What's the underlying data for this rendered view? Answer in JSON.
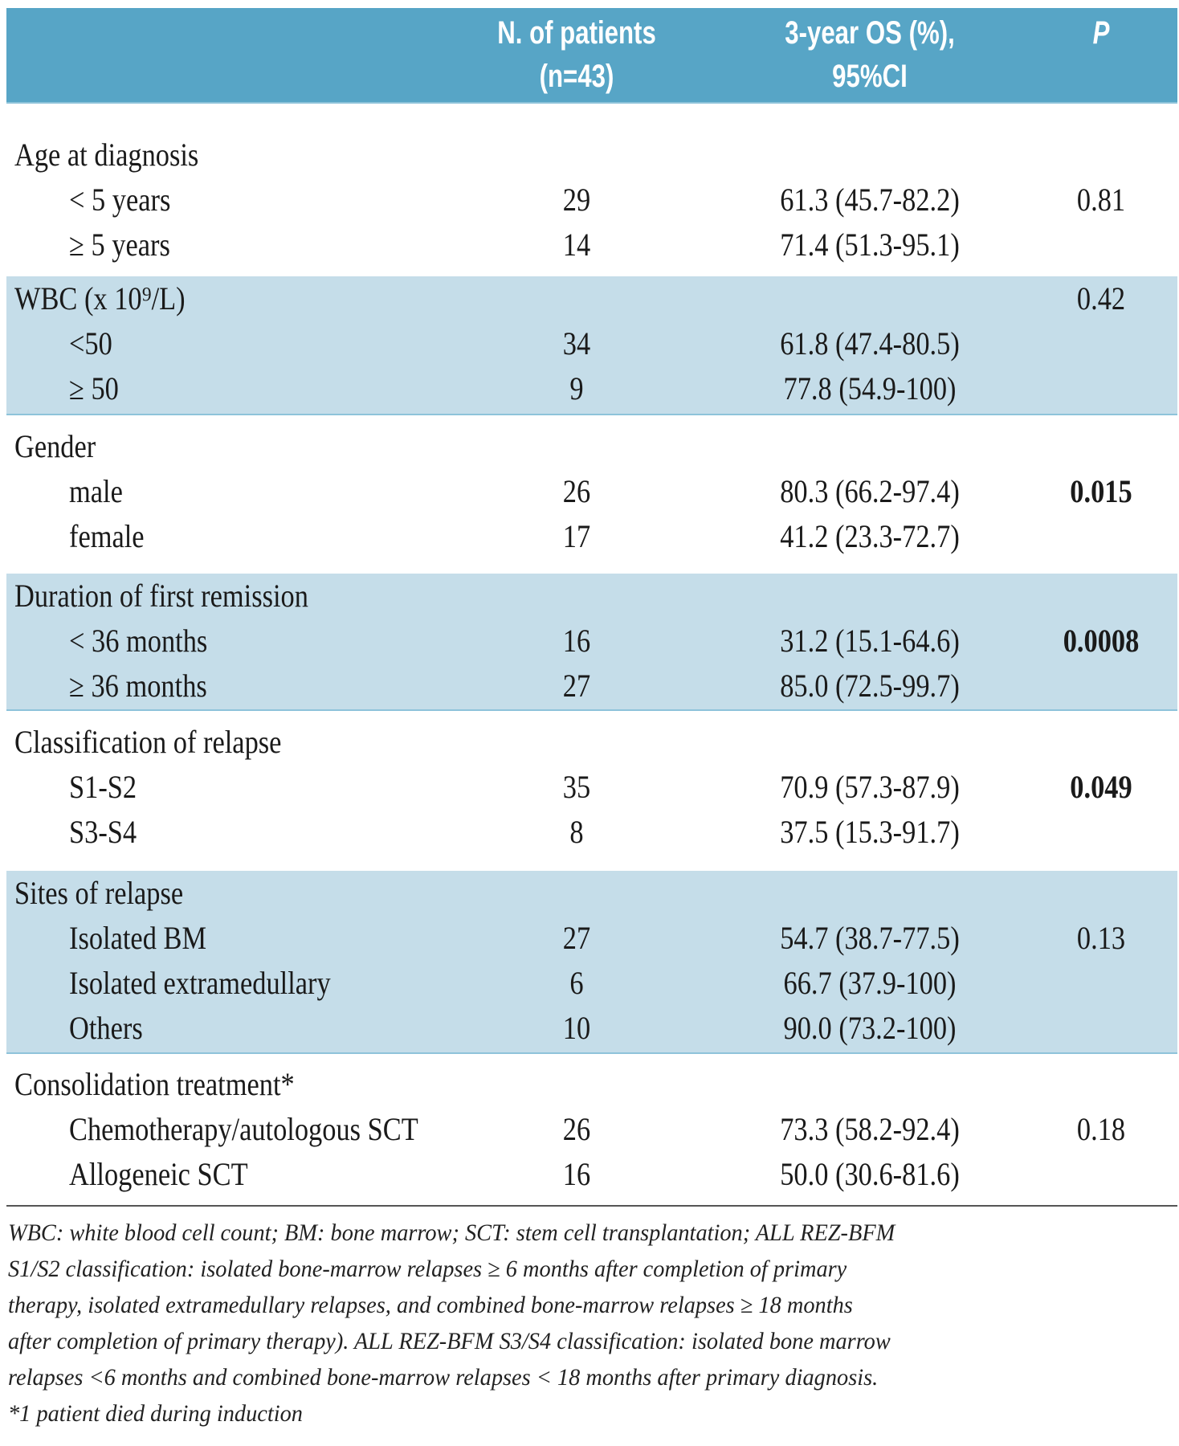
{
  "header": {
    "col_n_line1": "N. of patients",
    "col_n_line2": "(n=43)",
    "col_os_line1": "3-year OS (%),",
    "col_os_line2": "95%CI",
    "col_p": "P"
  },
  "groups": [
    {
      "label": "Age at diagnosis",
      "p": "",
      "rows": [
        {
          "label": "< 5 years",
          "n": "29",
          "os": "61.3 (45.7-82.2)",
          "p": "0.81"
        },
        {
          "label": "≥ 5 years",
          "n": "14",
          "os": "71.4 (51.3-95.1)",
          "p": ""
        }
      ]
    },
    {
      "label": "WBC (x 10⁹/L)",
      "p": "0.42",
      "rows": [
        {
          "label": "<50",
          "n": "34",
          "os": "61.8 (47.4-80.5)",
          "p": ""
        },
        {
          "label": "≥ 50",
          "n": "9",
          "os": "77.8 (54.9-100)",
          "p": ""
        }
      ]
    },
    {
      "label": "Gender",
      "p": "",
      "rows": [
        {
          "label": "male",
          "n": "26",
          "os": "80.3 (66.2-97.4)",
          "p": "0.015"
        },
        {
          "label": "female",
          "n": "17",
          "os": "41.2 (23.3-72.7)",
          "p": ""
        }
      ]
    },
    {
      "label": "Duration of first remission",
      "p": "",
      "rows": [
        {
          "label": "< 36 months",
          "n": "16",
          "os": "31.2 (15.1-64.6)",
          "p": "0.0008"
        },
        {
          "label": "≥ 36 months",
          "n": "27",
          "os": "85.0 (72.5-99.7)",
          "p": ""
        }
      ]
    },
    {
      "label": "Classification of relapse",
      "p": "",
      "rows": [
        {
          "label": "S1-S2",
          "n": "35",
          "os": "70.9 (57.3-87.9)",
          "p": "0.049"
        },
        {
          "label": "S3-S4",
          "n": "8",
          "os": "37.5 (15.3-91.7)",
          "p": ""
        }
      ]
    },
    {
      "label": "Sites of relapse",
      "p": "",
      "rows": [
        {
          "label": "Isolated BM",
          "n": "27",
          "os": "54.7 (38.7-77.5)",
          "p": "0.13"
        },
        {
          "label": "Isolated extramedullary",
          "n": "6",
          "os": "66.7 (37.9-100)",
          "p": ""
        },
        {
          "label": "Others",
          "n": "10",
          "os": "90.0 (73.2-100)",
          "p": ""
        }
      ]
    },
    {
      "label": "Consolidation treatment*",
      "p": "",
      "rows": [
        {
          "label": "Chemotherapy/autologous SCT",
          "n": "26",
          "os": "73.3 (58.2-92.4)",
          "p": "0.18"
        },
        {
          "label": "Allogeneic SCT",
          "n": "16",
          "os": "50.0 (30.6-81.6)",
          "p": ""
        }
      ]
    }
  ],
  "footnote": [
    "WBC: white blood cell count; BM: bone marrow; SCT: stem cell transplantation; ALL REZ-BFM",
    "S1/S2 classification: isolated bone-marrow relapses ≥ 6 months after completion of primary",
    "therapy, isolated extramedullary relapses, and combined bone-marrow relapses ≥ 18 months",
    "after completion of primary therapy). ALL REZ-BFM S3/S4 classification: isolated bone marrow",
    "relapses <6 months and combined bone-marrow relapses < 18 months after primary diagnosis.",
    "*1 patient died during induction"
  ],
  "colors": {
    "header_bg": "#57a5c6",
    "band_bg": "#c5dde9"
  }
}
